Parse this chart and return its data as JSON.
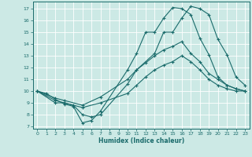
{
  "xlabel": "Humidex (Indice chaleur)",
  "bg_color": "#cce9e5",
  "grid_color": "#ffffff",
  "line_color": "#1a6b6b",
  "xlim": [
    -0.5,
    23.5
  ],
  "ylim": [
    6.8,
    17.6
  ],
  "xticks": [
    0,
    1,
    2,
    3,
    4,
    5,
    6,
    7,
    8,
    9,
    10,
    11,
    12,
    13,
    14,
    15,
    16,
    17,
    18,
    19,
    20,
    21,
    22,
    23
  ],
  "yticks": [
    7,
    8,
    9,
    10,
    11,
    12,
    13,
    14,
    15,
    16,
    17
  ],
  "line1_x": [
    0,
    1,
    2,
    3,
    4,
    5,
    6,
    7,
    10,
    11,
    12,
    13,
    14,
    15,
    16,
    17,
    18,
    19,
    20,
    21,
    22,
    23
  ],
  "line1_y": [
    10,
    9.8,
    9.3,
    8.9,
    8.7,
    7.3,
    7.5,
    8.3,
    11.8,
    13.2,
    15.0,
    15.0,
    16.2,
    17.1,
    17.0,
    16.5,
    14.5,
    13.1,
    11.2,
    10.5,
    10.2,
    10.0
  ],
  "line2_x": [
    0,
    2,
    3,
    4,
    5,
    6,
    7,
    10,
    11,
    13,
    14,
    15,
    16,
    17,
    18,
    19,
    20,
    21,
    22,
    23
  ],
  "line2_y": [
    10,
    9.2,
    9.0,
    8.8,
    8.0,
    7.8,
    8.0,
    10.6,
    11.8,
    13.2,
    15.0,
    15.0,
    16.2,
    17.2,
    17.0,
    16.5,
    14.4,
    13.1,
    11.2,
    10.5
  ],
  "line3_x": [
    0,
    2,
    3,
    5,
    7,
    10,
    11,
    12,
    13,
    14,
    15,
    16,
    17,
    18,
    19,
    20,
    21,
    22,
    23
  ],
  "line3_y": [
    10,
    9.4,
    9.2,
    8.8,
    9.5,
    11.0,
    11.8,
    12.4,
    13.0,
    13.5,
    13.8,
    14.2,
    13.2,
    12.5,
    11.5,
    11.0,
    10.5,
    10.2,
    10.0
  ],
  "line4_x": [
    0,
    2,
    3,
    5,
    7,
    10,
    11,
    12,
    13,
    14,
    15,
    16,
    17,
    18,
    19,
    20,
    21,
    22,
    23
  ],
  "line4_y": [
    10,
    9.0,
    9.0,
    8.6,
    9.0,
    9.8,
    10.5,
    11.2,
    11.8,
    12.2,
    12.5,
    13.0,
    12.5,
    11.8,
    11.0,
    10.5,
    10.2,
    10.0,
    10.0
  ]
}
